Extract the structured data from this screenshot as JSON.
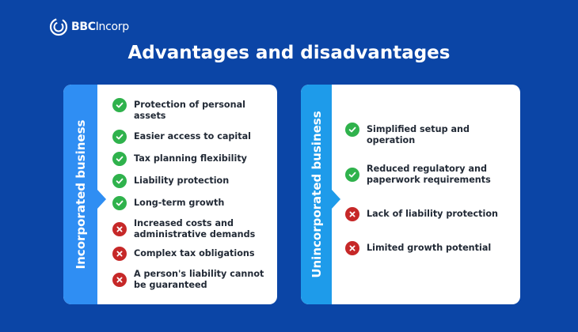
{
  "brand": {
    "name_bold": "BBC",
    "name_rest": "Incorp"
  },
  "title": "Advantages and disadvantages",
  "colors": {
    "background": "#0b45a6",
    "band_left": "#2f8ef3",
    "band_right": "#1e9bea",
    "check": "#2fb24c",
    "cross": "#c62828"
  },
  "incorporated": {
    "label": "Incorporated business",
    "items": [
      {
        "text": "Protection of personal assets",
        "icon": "check-icon"
      },
      {
        "text": "Easier access to capital",
        "icon": "check-icon"
      },
      {
        "text": "Tax planning flexibility",
        "icon": "check-icon"
      },
      {
        "text": "Liability protection",
        "icon": "check-icon"
      },
      {
        "text": "Long-term growth",
        "icon": "check-icon"
      },
      {
        "text": "Increased costs and administrative demands",
        "icon": "cross-icon"
      },
      {
        "text": "Complex tax obligations",
        "icon": "cross-icon"
      },
      {
        "text": "A person's liability cannot be guaranteed",
        "icon": "cross-icon"
      }
    ]
  },
  "unincorporated": {
    "label": "Unincorporated business",
    "items": [
      {
        "text": "Simplified setup and operation",
        "icon": "check-icon"
      },
      {
        "text": "Reduced regulatory and paperwork requirements",
        "icon": "check-icon"
      },
      {
        "text": "Lack of liability protection",
        "icon": "cross-icon"
      },
      {
        "text": "Limited growth potential",
        "icon": "cross-icon"
      }
    ]
  }
}
